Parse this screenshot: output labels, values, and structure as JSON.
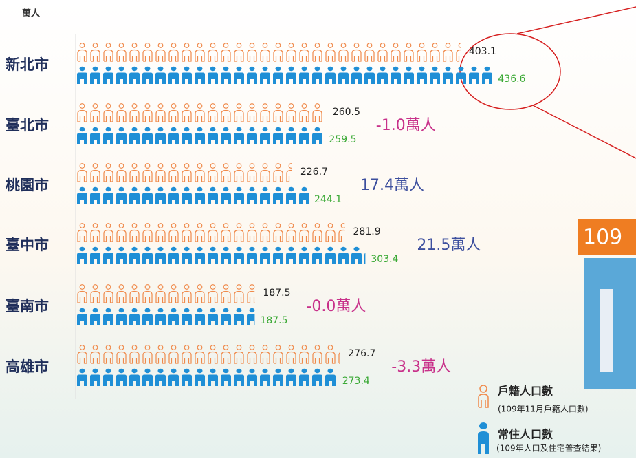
{
  "chart_data": {
    "type": "pictogram-bar",
    "unit_label": "萬人",
    "categories": [
      "新北市",
      "臺北市",
      "桃園市",
      "臺中市",
      "臺南市",
      "高雄市"
    ],
    "series": [
      {
        "name": "戶籍人口數",
        "note": "(109年11月戶籍人口數)",
        "color": "#f08a4b",
        "label_color": "#222222",
        "values": [
          403.1,
          260.5,
          226.7,
          281.9,
          187.5,
          276.7
        ]
      },
      {
        "name": "常住人口數",
        "note": "(109年人口及住宅普查結果)",
        "color": "#1f8fd6",
        "label_color": "#3aa935",
        "values": [
          436.6,
          259.5,
          244.1,
          303.4,
          187.5,
          273.4
        ]
      }
    ],
    "difference_labels": [
      null,
      {
        "text": "-1.0萬人",
        "color": "#c8318a"
      },
      {
        "text": "17.4萬人",
        "color": "#3d4f9e"
      },
      {
        "text": "21.5萬人",
        "color": "#3d4f9e"
      },
      {
        "text": "-0.0萬人",
        "color": "#c8318a"
      },
      {
        "text": "-3.3萬人",
        "color": "#c8318a"
      }
    ],
    "xlim": [
      0,
      450
    ],
    "banner_text": "109"
  }
}
